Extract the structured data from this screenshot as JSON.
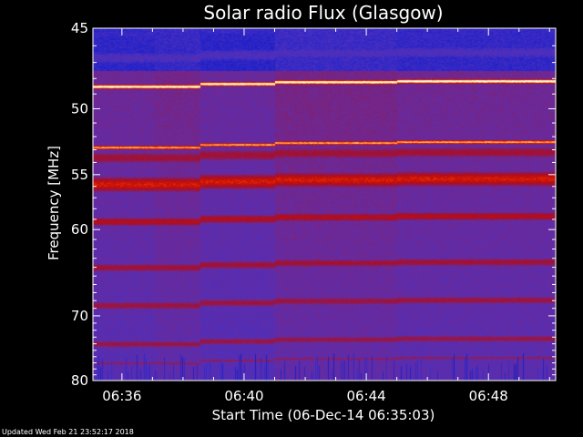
{
  "chart_data": {
    "type": "heatmap",
    "title": "Solar radio Flux (Glasgow)",
    "xlabel": "Start Time (06-Dec-14 06:35:03)",
    "ylabel": "Frequency [MHz]",
    "x_start": "06:35:03",
    "x_end": "06:50:12",
    "x_ticks": [
      "06:36",
      "06:40",
      "06:44",
      "06:48"
    ],
    "y_ticks": [
      45,
      50,
      55,
      60,
      70,
      80
    ],
    "ylim": [
      45,
      80
    ],
    "y_scale": "reciprocal",
    "colormap": [
      "#000010",
      "#101070",
      "#2020c8",
      "#4a30c0",
      "#6a2a9c",
      "#8a1c5e",
      "#a80e28",
      "#c81008",
      "#ff4a00",
      "#ffd070",
      "#ffffff"
    ],
    "background_level": 0.42,
    "segment_boundaries": [
      "06:35:03",
      "06:37:05",
      "06:38:35",
      "06:41:00",
      "06:45:00",
      "06:50:12"
    ],
    "bands": [
      {
        "freq": 45.3,
        "level": 0.26,
        "width": 0.5
      },
      {
        "freq": 45.7,
        "level": 0.1,
        "width": 1.0
      },
      {
        "freq": 46.7,
        "level": 0.32,
        "width": 0.6
      },
      {
        "freq": 48.5,
        "level": 1.0,
        "width": 0.18
      },
      {
        "freq": 49.7,
        "level": 0.22,
        "width": 0.4
      },
      {
        "freq": 51.3,
        "level": 0.33,
        "width": 0.4
      },
      {
        "freq": 52.8,
        "level": 0.88,
        "width": 0.2
      },
      {
        "freq": 53.6,
        "level": 0.58,
        "width": 0.7
      },
      {
        "freq": 55.8,
        "level": 0.72,
        "width": 0.9
      },
      {
        "freq": 59.2,
        "level": 0.64,
        "width": 0.6
      },
      {
        "freq": 64.0,
        "level": 0.58,
        "width": 0.7
      },
      {
        "freq": 68.6,
        "level": 0.56,
        "width": 0.8
      },
      {
        "freq": 74.0,
        "level": 0.55,
        "width": 0.8
      },
      {
        "freq": 77.0,
        "level": 0.48,
        "width": 0.6
      },
      {
        "freq": 79.5,
        "level": 0.28,
        "width": 1.0
      }
    ]
  },
  "footer": {
    "updated": "Updated Wed Feb 21 23:52:17 2018"
  }
}
